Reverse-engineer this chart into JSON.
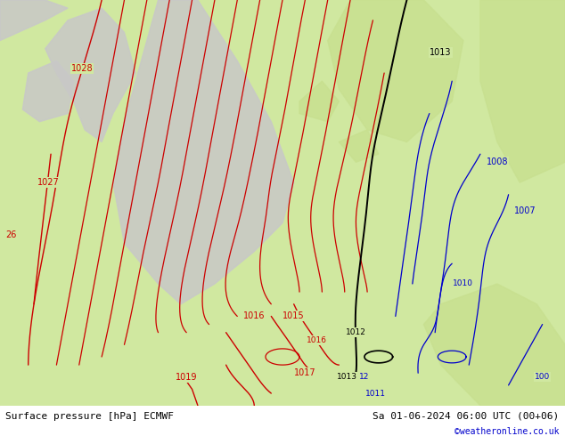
{
  "title_left": "Surface pressure [hPa] ECMWF",
  "title_right": "Sa 01-06-2024 06:00 UTC (00+06)",
  "watermark": "©weatheronline.co.uk",
  "bg_color": "#d0e8a0",
  "land_color": "#c8e090",
  "sea_color": "#d8eeb0",
  "gray_land_color": "#c8c8c8",
  "fig_width": 6.34,
  "fig_height": 4.9,
  "dpi": 100,
  "bottom_bar_color": "#ffffff",
  "bottom_text_color": "#000000",
  "watermark_color": "#0000cc",
  "isobar_red_color": "#cc0000",
  "isobar_blue_color": "#0000cc",
  "isobar_black_color": "#000000",
  "font_size_labels": 7,
  "font_size_bottom": 8,
  "font_size_watermark": 7
}
